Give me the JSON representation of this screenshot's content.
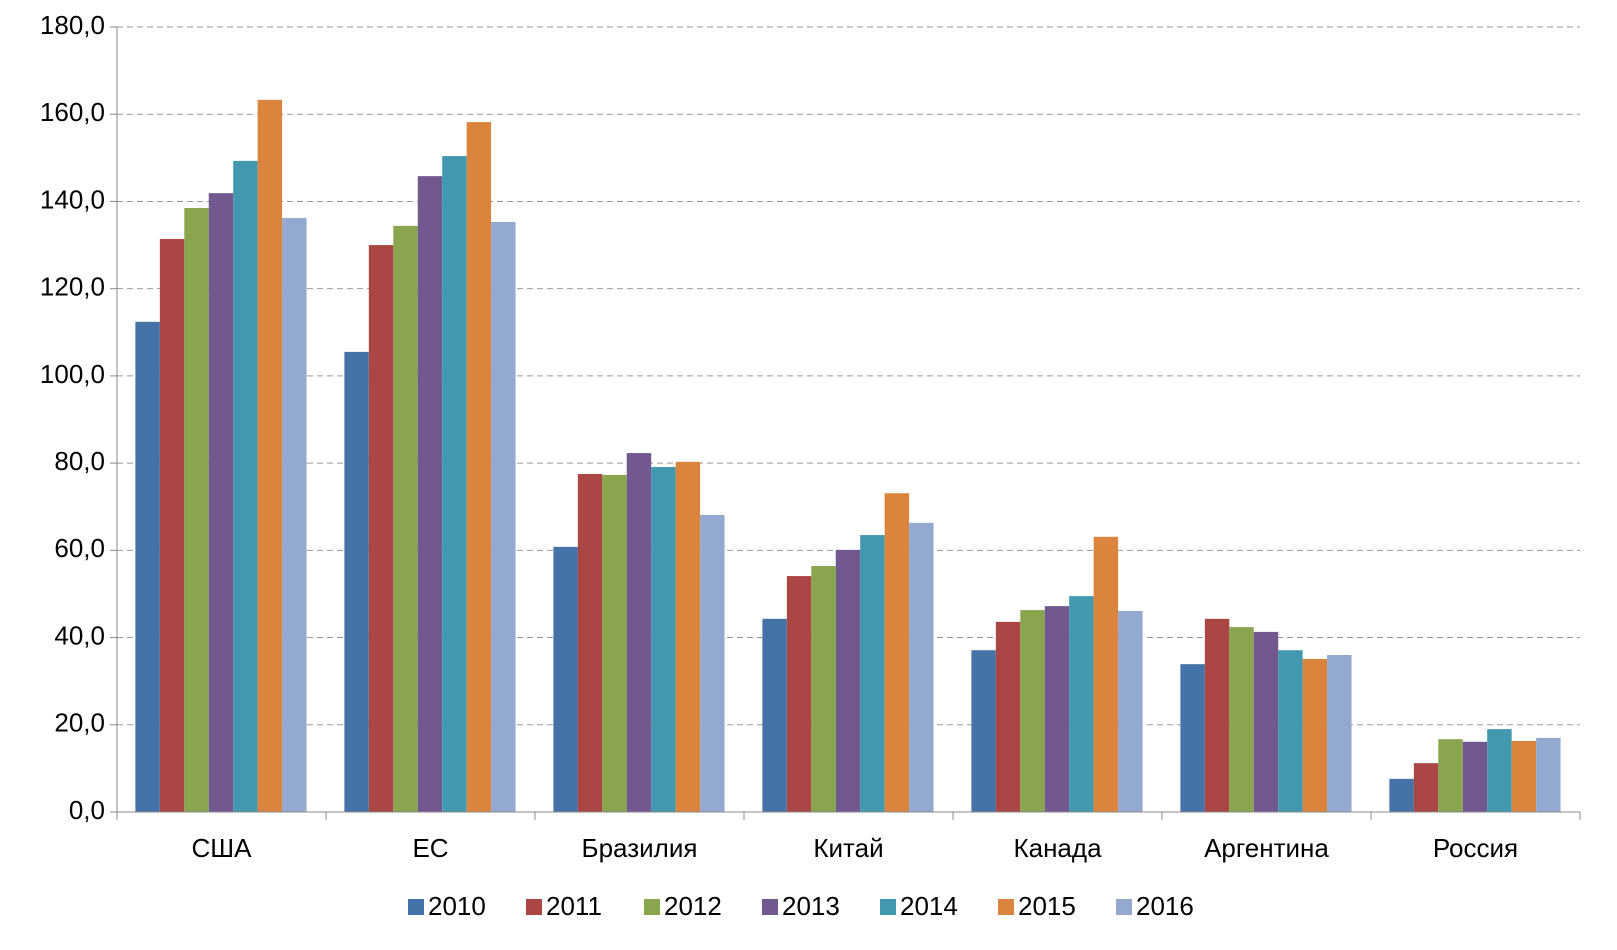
{
  "chart_data": {
    "type": "bar",
    "categories": [
      "США",
      "ЕС",
      "Бразилия",
      "Китай",
      "Канада",
      "Аргентина",
      "Россия"
    ],
    "series": [
      {
        "name": "2010",
        "color": "#4572a7",
        "values": [
          112.4,
          105.5,
          60.8,
          44.3,
          37.1,
          33.9,
          7.6
        ]
      },
      {
        "name": "2011",
        "color": "#aa4643",
        "values": [
          131.4,
          130,
          77.5,
          54.1,
          43.6,
          44.3,
          11.2
        ]
      },
      {
        "name": "2012",
        "color": "#89a54e",
        "values": [
          138.5,
          134.4,
          77.3,
          56.4,
          46.3,
          42.4,
          16.7
        ]
      },
      {
        "name": "2013",
        "color": "#71588f",
        "values": [
          141.9,
          145.8,
          82.3,
          60.1,
          47.2,
          41.3,
          16.1
        ]
      },
      {
        "name": "2014",
        "color": "#4198af",
        "values": [
          149.3,
          150.4,
          79.1,
          63.5,
          49.5,
          37.1,
          19
        ]
      },
      {
        "name": "2015",
        "color": "#db843d",
        "values": [
          163.3,
          158.2,
          80.3,
          73.1,
          63.1,
          35.1,
          16.3
        ]
      },
      {
        "name": "2016",
        "color": "#93a9cf",
        "values": [
          136.2,
          135.3,
          68.1,
          66.3,
          46.1,
          36,
          17
        ]
      }
    ],
    "ylim": [
      0,
      180
    ],
    "yticks": [
      {
        "value": 0,
        "label": "0,0"
      },
      {
        "value": 20,
        "label": "20,0"
      },
      {
        "value": 40,
        "label": "40,0"
      },
      {
        "value": 60,
        "label": "60,0"
      },
      {
        "value": 80,
        "label": "80,0"
      },
      {
        "value": 100,
        "label": "100,0"
      },
      {
        "value": 120,
        "label": "120,0"
      },
      {
        "value": 140,
        "label": "140,0"
      },
      {
        "value": 160,
        "label": "160,0"
      },
      {
        "value": 180,
        "label": "180,0"
      }
    ],
    "grid": true,
    "legend": "bottom"
  }
}
